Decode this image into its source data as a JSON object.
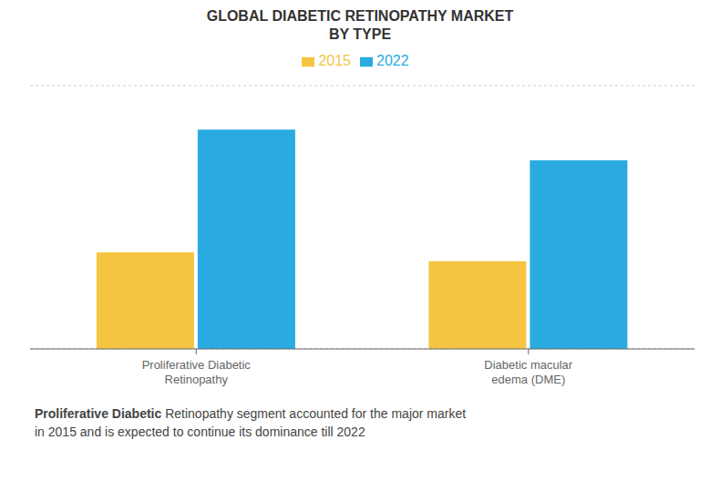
{
  "chart_data": {
    "type": "bar",
    "title": "GLOBAL DIABETIC RETINOPATHY MARKET",
    "subtitle": "BY TYPE",
    "categories": [
      "Proliferative Diabetic\nRetinopathy",
      "Diabetic macular\nedema (DME)"
    ],
    "series": [
      {
        "name": "2015",
        "color": "#F5C542",
        "values": [
          2.2,
          2.0
        ]
      },
      {
        "name": "2022",
        "color": "#29ABE2",
        "values": [
          5.0,
          4.3
        ]
      }
    ],
    "ylim": [
      0,
      6
    ],
    "yticks": [
      0,
      0.8571428571428571,
      1.7142857142857142,
      2.571428571428571,
      3.4285714285714284,
      4.285714285714286,
      5.142857142857143,
      6
    ],
    "grid": true,
    "tick_labels": "x",
    "legend": "top",
    "annotation": {
      "bold": "Proliferative Diabetic",
      "text": " Retinopathy segment accounted for the major market\nin 2015 and is expected to continue its dominance till 2022"
    }
  }
}
